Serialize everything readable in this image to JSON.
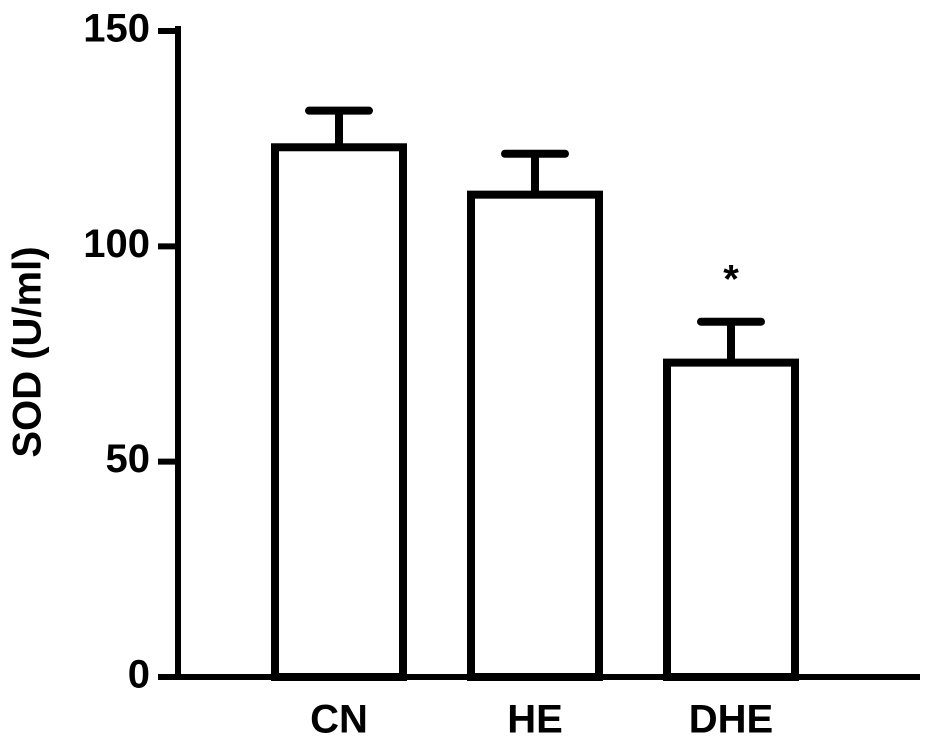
{
  "chart_data": {
    "type": "bar",
    "y_label": "SOD (U/ml)",
    "categories": [
      "CN",
      "HE",
      "DHE"
    ],
    "values": [
      123,
      112,
      73
    ],
    "errors": [
      8.5,
      9.5,
      9.5
    ],
    "color": "#ffffff",
    "edge_color": "#000000",
    "ylim": [
      0,
      150
    ],
    "yticks": [
      0,
      50,
      100,
      150
    ],
    "annotations": [
      {
        "text": "*",
        "category": "DHE"
      }
    ]
  }
}
